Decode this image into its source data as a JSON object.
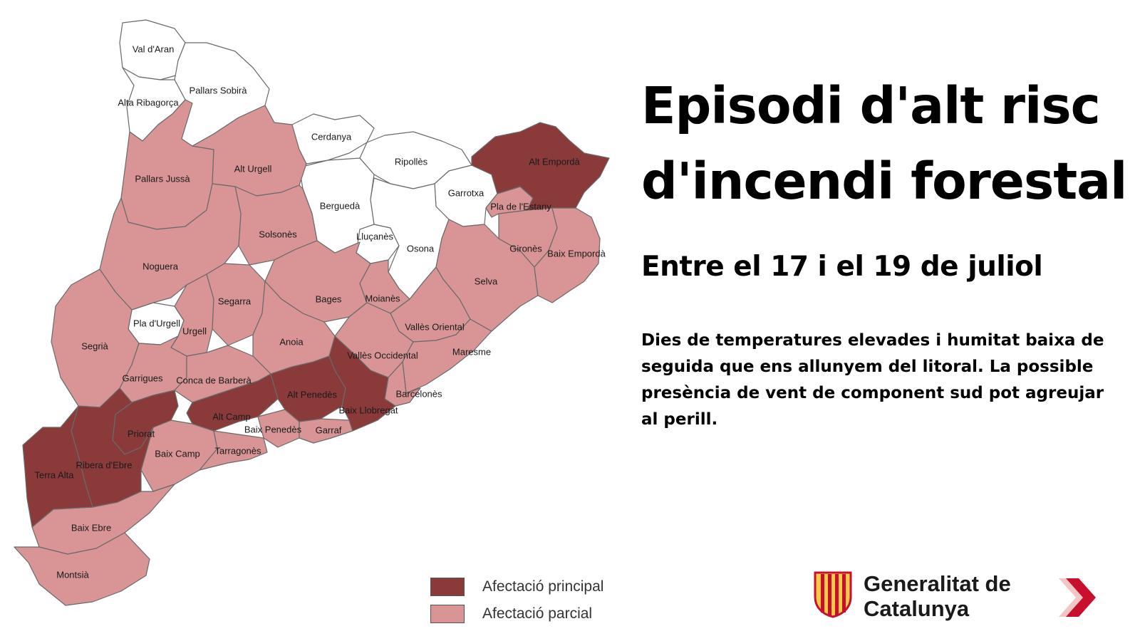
{
  "title": "Episodi d'alt risc d'incendi forestal",
  "subtitle": "Entre el 17 i el 19 de juliol",
  "description": "Dies de temperatures elevades i humitat baixa de seguida que ens allunyem del litoral. La possible presència de vent de component sud pot agreujar al perill.",
  "colors": {
    "principal": "#8b3a3a",
    "parcial": "#d99595",
    "none": "#ffffff",
    "brand_red": "#c8102e",
    "brand_yellow": "#f7c948"
  },
  "legend": [
    {
      "label": "Afectació principal",
      "color": "#8b3a3a"
    },
    {
      "label": "Afectació parcial",
      "color": "#d99595"
    }
  ],
  "regions": [
    {
      "name": "Val d'Aran",
      "level": "none"
    },
    {
      "name": "Pallars Sobirà",
      "level": "none"
    },
    {
      "name": "Alta Ribagorça",
      "level": "none"
    },
    {
      "name": "Cerdanya",
      "level": "none"
    },
    {
      "name": "Ripollès",
      "level": "none"
    },
    {
      "name": "Garrotxa",
      "level": "none"
    },
    {
      "name": "Berguedà",
      "level": "none"
    },
    {
      "name": "Lluçanès",
      "level": "none"
    },
    {
      "name": "Osona",
      "level": "none"
    },
    {
      "name": "Pla d'Urgell",
      "level": "none"
    },
    {
      "name": "Pallars Jussà",
      "level": "parcial"
    },
    {
      "name": "Alt Urgell",
      "level": "parcial"
    },
    {
      "name": "Solsonès",
      "level": "parcial"
    },
    {
      "name": "Noguera",
      "level": "parcial"
    },
    {
      "name": "Segrià",
      "level": "parcial"
    },
    {
      "name": "Urgell",
      "level": "parcial"
    },
    {
      "name": "Segarra",
      "level": "parcial"
    },
    {
      "name": "Bages",
      "level": "parcial"
    },
    {
      "name": "Moianès",
      "level": "parcial"
    },
    {
      "name": "Anoia",
      "level": "parcial"
    },
    {
      "name": "Garrigues",
      "level": "parcial"
    },
    {
      "name": "Conca de Barberà",
      "level": "parcial"
    },
    {
      "name": "Vallès Oriental",
      "level": "parcial"
    },
    {
      "name": "Vallès Occidental",
      "level": "parcial"
    },
    {
      "name": "Maresme",
      "level": "parcial"
    },
    {
      "name": "Barcelonès",
      "level": "parcial"
    },
    {
      "name": "Selva",
      "level": "parcial"
    },
    {
      "name": "Gironès",
      "level": "parcial"
    },
    {
      "name": "Pla de l'Estany",
      "level": "parcial"
    },
    {
      "name": "Baix Empordà",
      "level": "parcial"
    },
    {
      "name": "Baix Camp",
      "level": "parcial"
    },
    {
      "name": "Tarragonès",
      "level": "parcial"
    },
    {
      "name": "Baix Penedès",
      "level": "parcial"
    },
    {
      "name": "Garraf",
      "level": "parcial"
    },
    {
      "name": "Baix Ebre",
      "level": "parcial"
    },
    {
      "name": "Montsià",
      "level": "parcial"
    },
    {
      "name": "Alt Empordà",
      "level": "principal"
    },
    {
      "name": "Alt Camp",
      "level": "principal"
    },
    {
      "name": "Alt Penedès",
      "level": "principal"
    },
    {
      "name": "Baix Llobregat",
      "level": "principal"
    },
    {
      "name": "Priorat",
      "level": "principal"
    },
    {
      "name": "Ribera d'Ebre",
      "level": "principal"
    },
    {
      "name": "Terra Alta",
      "level": "principal"
    }
  ],
  "branding": {
    "name": "Generalitat de Catalunya",
    "logo_icon": "senyera-crest-icon",
    "next_icon": "chevron-right-icon"
  }
}
